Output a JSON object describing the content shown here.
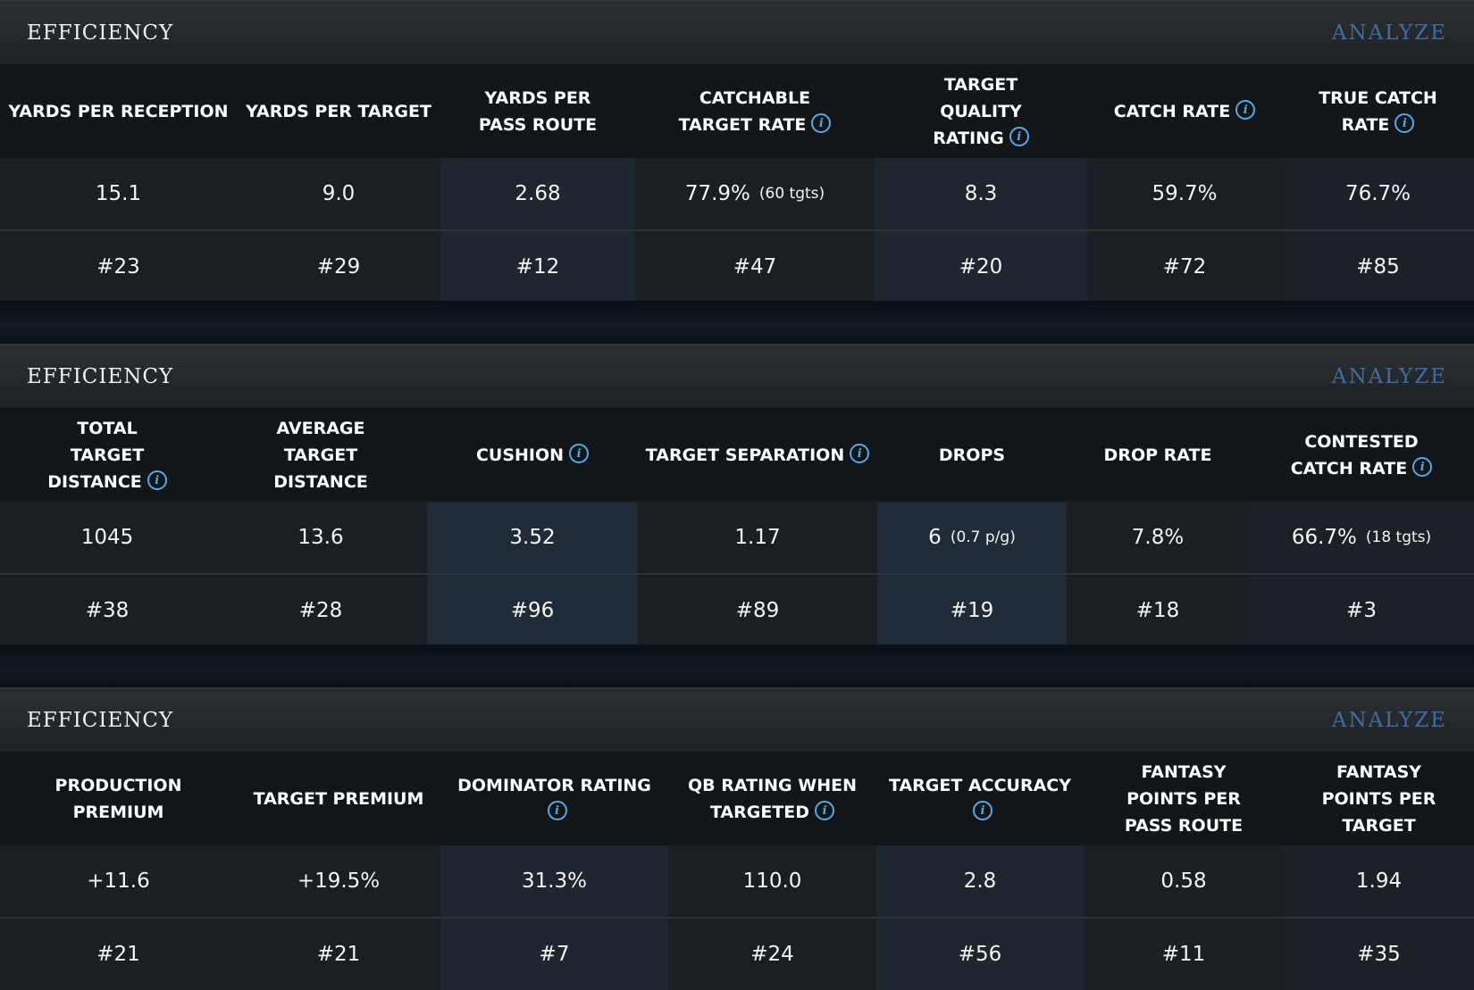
{
  "panels": [
    {
      "title": "EFFICIENCY",
      "analyze_label": "ANALYZE",
      "columns": [
        {
          "header": "YARDS PER RECEPTION",
          "info": false,
          "value": "15.1",
          "sub": "",
          "rank": "#23"
        },
        {
          "header": "YARDS PER TARGET",
          "info": false,
          "value": "9.0",
          "sub": "",
          "rank": "#29"
        },
        {
          "header": "YARDS PER PASS ROUTE",
          "info": false,
          "value": "2.68",
          "sub": "",
          "rank": "#12"
        },
        {
          "header": "CATCHABLE TARGET RATE",
          "info": true,
          "value": "77.9%",
          "sub": "(60 tgts)",
          "rank": "#47"
        },
        {
          "header": "TARGET QUALITY RATING",
          "info": true,
          "value": "8.3",
          "sub": "",
          "rank": "#20"
        },
        {
          "header": "CATCH RATE",
          "info": true,
          "value": "59.7%",
          "sub": "",
          "rank": "#72"
        },
        {
          "header": "TRUE CATCH RATE",
          "info": true,
          "value": "76.7%",
          "sub": "",
          "rank": "#85"
        }
      ]
    },
    {
      "title": "EFFICIENCY",
      "analyze_label": "ANALYZE",
      "columns": [
        {
          "header": "TOTAL TARGET DISTANCE",
          "info": true,
          "value": "1045",
          "sub": "",
          "rank": "#38"
        },
        {
          "header": "AVERAGE TARGET DISTANCE",
          "info": false,
          "value": "13.6",
          "sub": "",
          "rank": "#28"
        },
        {
          "header": "CUSHION",
          "info": true,
          "value": "3.52",
          "sub": "",
          "rank": "#96"
        },
        {
          "header": "TARGET SEPARATION",
          "info": true,
          "value": "1.17",
          "sub": "",
          "rank": "#89"
        },
        {
          "header": "DROPS",
          "info": false,
          "value": "6",
          "sub": "(0.7 p/g)",
          "rank": "#19"
        },
        {
          "header": "DROP RATE",
          "info": false,
          "value": "7.8%",
          "sub": "",
          "rank": "#18"
        },
        {
          "header": "CONTESTED CATCH RATE",
          "info": true,
          "value": "66.7%",
          "sub": "(18 tgts)",
          "rank": "#3"
        }
      ]
    },
    {
      "title": "EFFICIENCY",
      "analyze_label": "ANALYZE",
      "columns": [
        {
          "header": "PRODUCTION PREMIUM",
          "info": false,
          "value": "+11.6",
          "sub": "",
          "rank": "#21"
        },
        {
          "header": "TARGET PREMIUM",
          "info": false,
          "value": "+19.5%",
          "sub": "",
          "rank": "#21"
        },
        {
          "header": "DOMINATOR RATING",
          "info": true,
          "value": "31.3%",
          "sub": "",
          "rank": "#7"
        },
        {
          "header": "QB RATING WHEN TARGETED",
          "info": true,
          "value": "110.0",
          "sub": "",
          "rank": "#24"
        },
        {
          "header": "TARGET ACCURACY",
          "info": true,
          "value": "2.8",
          "sub": "",
          "rank": "#56"
        },
        {
          "header": "FANTASY POINTS PER PASS ROUTE",
          "info": false,
          "value": "0.58",
          "sub": "",
          "rank": "#11"
        },
        {
          "header": "FANTASY POINTS PER TARGET",
          "info": false,
          "value": "1.94",
          "sub": "",
          "rank": "#35"
        }
      ]
    }
  ],
  "info_icon_glyph": "i",
  "icons": {
    "info": "info-circle-icon"
  }
}
